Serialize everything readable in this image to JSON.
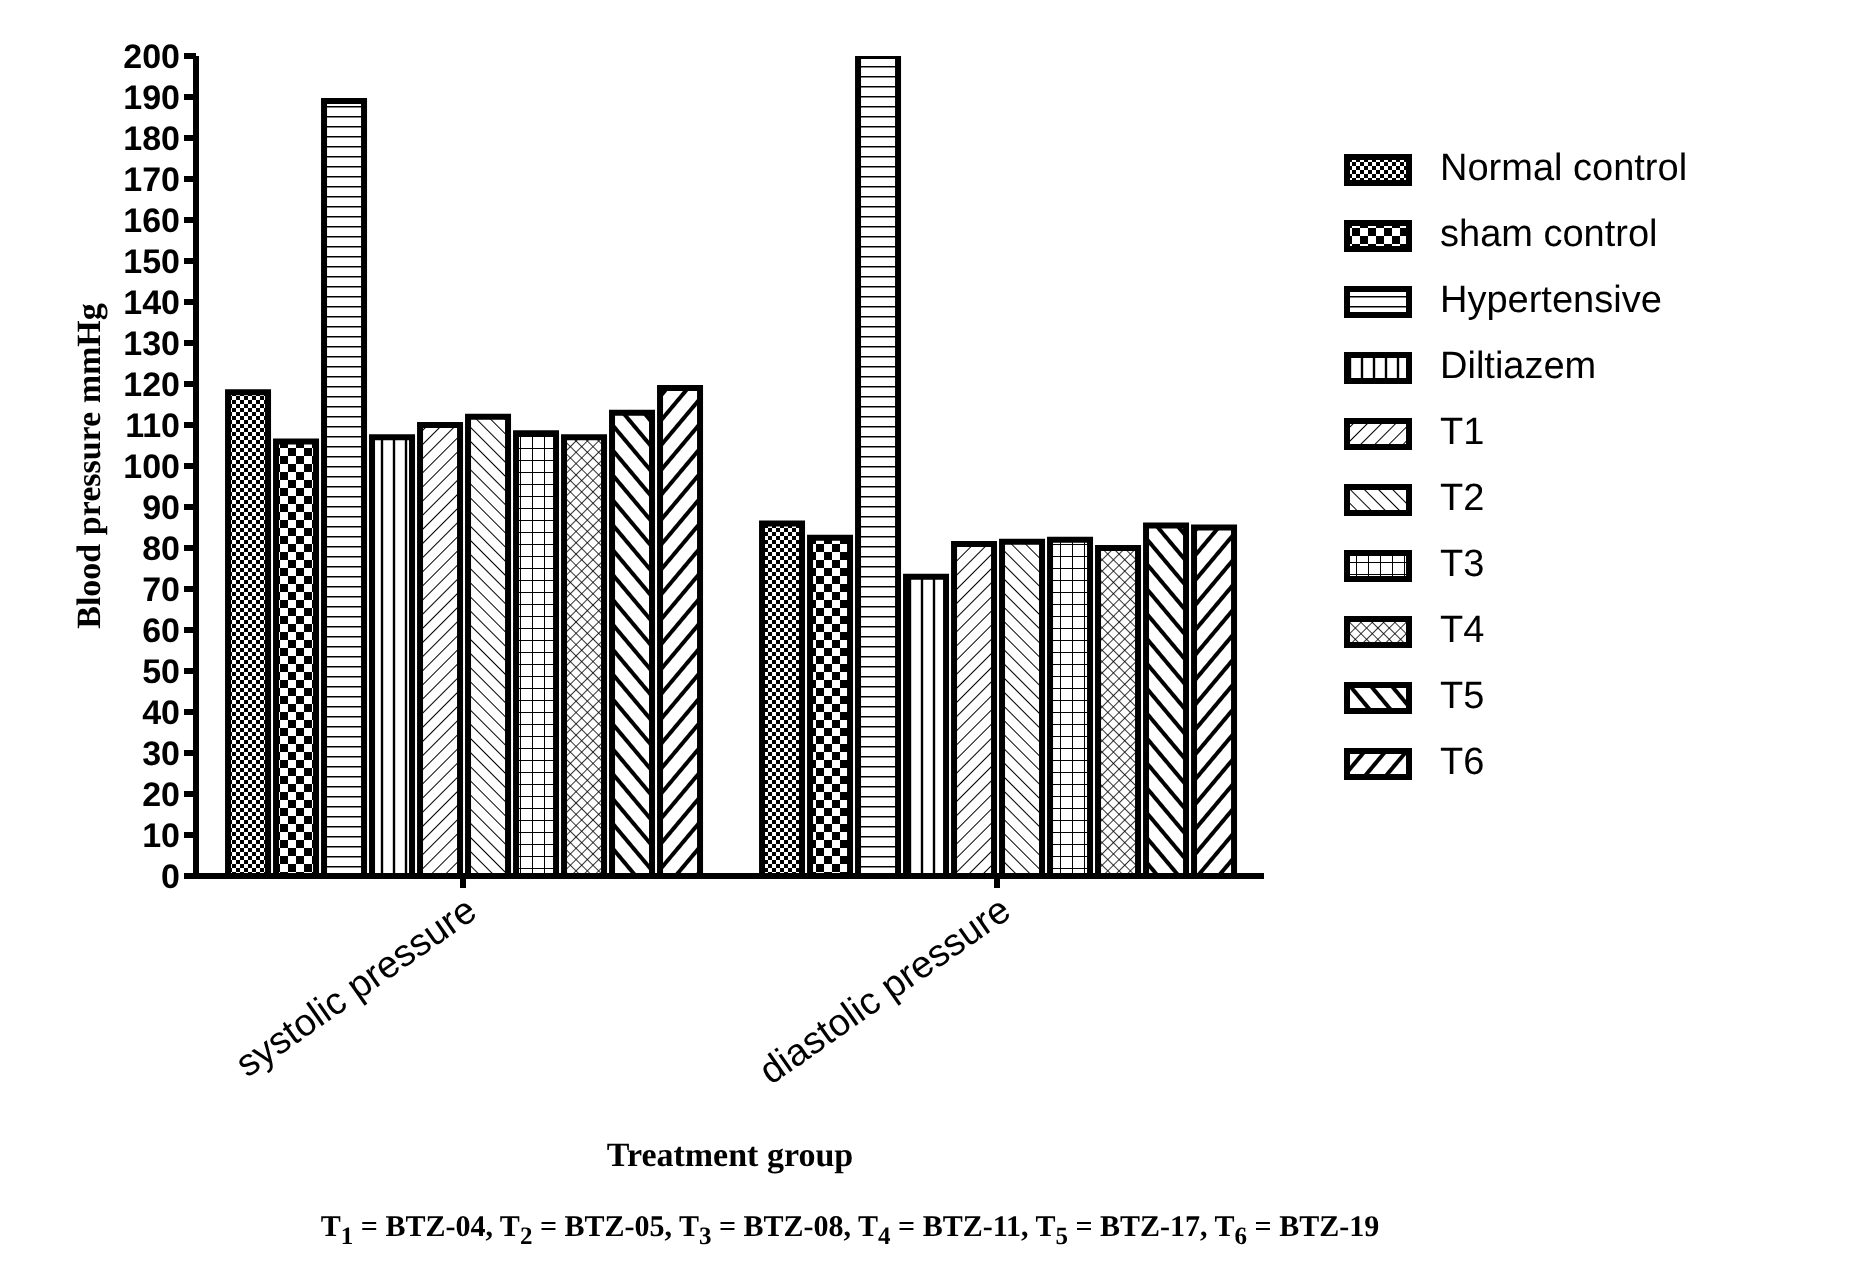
{
  "chart_data": {
    "type": "bar",
    "xlabel": "Treatment group",
    "ylabel": "Blood pressure mmHg",
    "categories": [
      "systolic pressure",
      "diastolic pressure"
    ],
    "series": [
      {
        "name": "Normal control",
        "color": "#000000",
        "values": [
          118,
          86
        ]
      },
      {
        "name": "sham control",
        "color": "#000000",
        "values": [
          106,
          82.5
        ]
      },
      {
        "name": "Hypertensive",
        "color": "#000000",
        "values": [
          189,
          200
        ]
      },
      {
        "name": "Diltiazem",
        "color": "#000000",
        "values": [
          107,
          73
        ]
      },
      {
        "name": "T1",
        "color": "#000000",
        "values": [
          110,
          81
        ]
      },
      {
        "name": "T2",
        "color": "#000000",
        "values": [
          112,
          81.5
        ]
      },
      {
        "name": "T3",
        "color": "#000000",
        "values": [
          108,
          82
        ]
      },
      {
        "name": "T4",
        "color": "#000000",
        "values": [
          107,
          80
        ]
      },
      {
        "name": "T5",
        "color": "#000000",
        "values": [
          113,
          85.5
        ]
      },
      {
        "name": "T6",
        "color": "#000000",
        "values": [
          119,
          85
        ]
      }
    ],
    "ylim": [
      0,
      200
    ],
    "yticks": [
      0,
      10,
      20,
      30,
      40,
      50,
      60,
      70,
      80,
      90,
      100,
      110,
      120,
      130,
      140,
      150,
      160,
      170,
      180,
      190,
      200
    ],
    "grid": false,
    "legend": "right",
    "annotations": [
      "T$_{1}$ = BTZ-04, T$_{2}$ = BTZ-05, T$_{3}$ = BTZ-08, T$_{4}$ = BTZ-11, T$_{5}$ = BTZ-17, T$_{6}$ = BTZ-19"
    ]
  }
}
